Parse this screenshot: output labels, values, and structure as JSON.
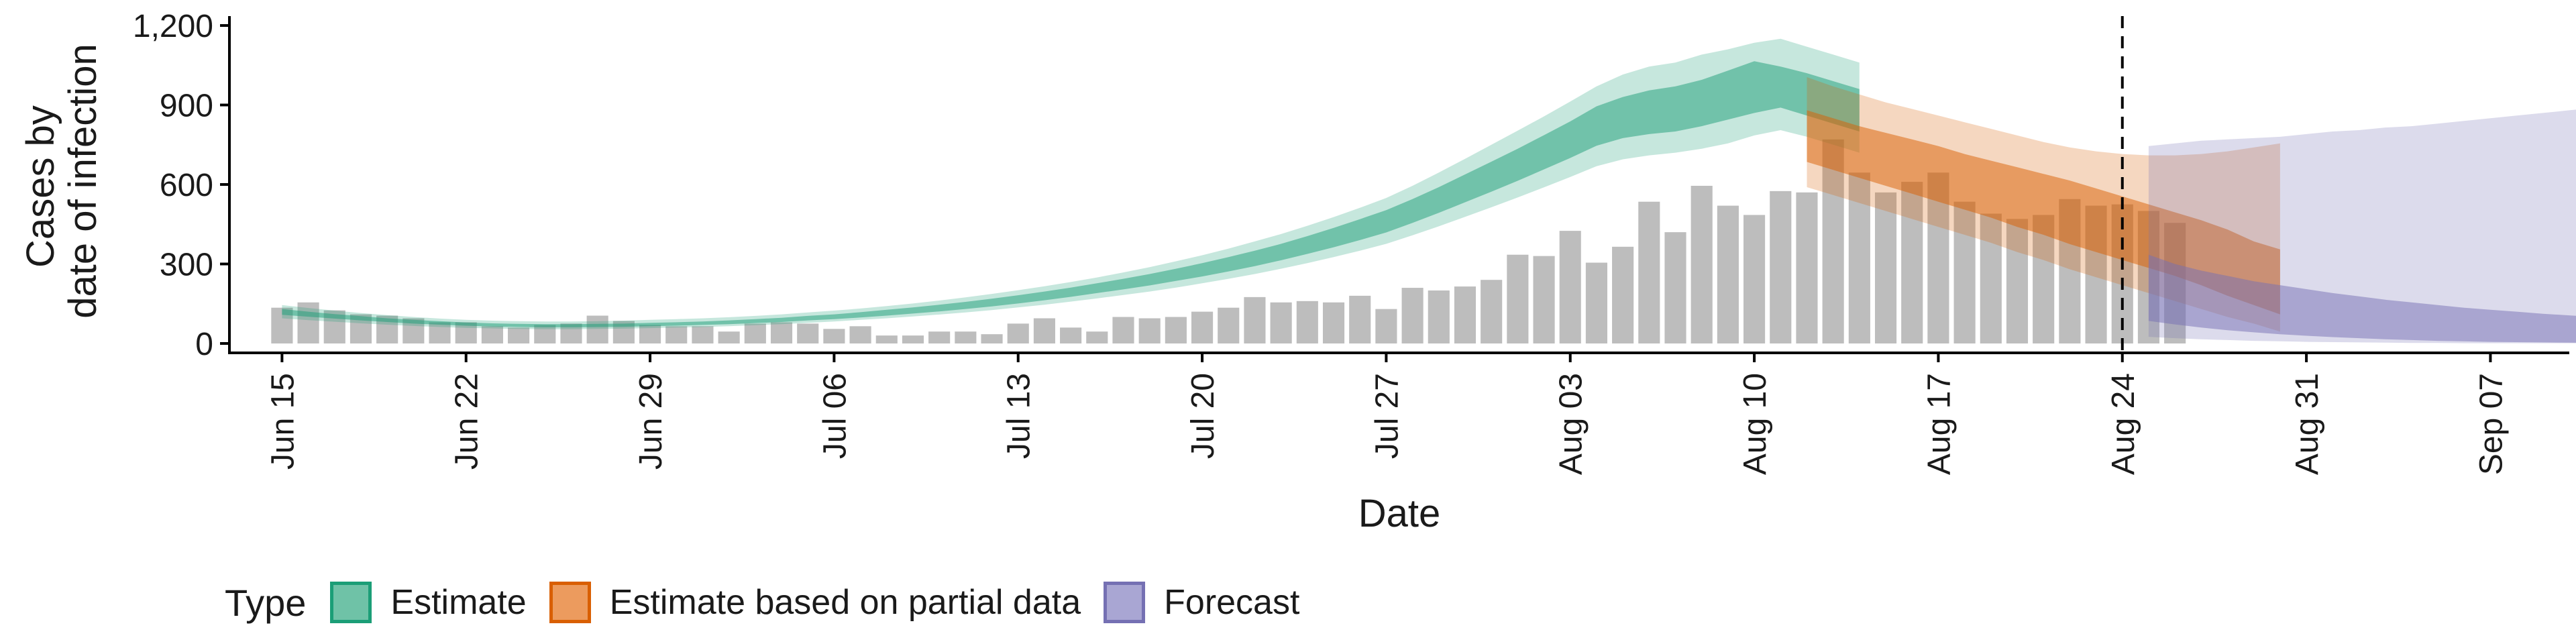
{
  "chart_data": {
    "type": "bar",
    "title": "",
    "xlabel": "Date",
    "ylabel": [
      "Cases by",
      "date of infection"
    ],
    "ylim": [
      0,
      1200
    ],
    "yticks": [
      0,
      300,
      600,
      900,
      1200
    ],
    "ytick_labels": [
      "0",
      "300",
      "600",
      "900",
      "1,200"
    ],
    "xlim": [
      "2020-06-13",
      "2020-09-10"
    ],
    "xticks": [
      "2020-06-15",
      "2020-06-22",
      "2020-06-29",
      "2020-07-06",
      "2020-07-13",
      "2020-07-20",
      "2020-07-27",
      "2020-08-03",
      "2020-08-10",
      "2020-08-17",
      "2020-08-24",
      "2020-08-31",
      "2020-09-07"
    ],
    "xtick_labels": [
      "Jun 15",
      "Jun 22",
      "Jun 29",
      "Jul 06",
      "Jul 13",
      "Jul 20",
      "Jul 27",
      "Aug 03",
      "Aug 10",
      "Aug 17",
      "Aug 24",
      "Aug 31",
      "Sep 07"
    ],
    "grid": false,
    "vline": "2020-08-24",
    "bars": {
      "start": "2020-06-15",
      "color": "#bdbdbd",
      "values": [
        135,
        155,
        125,
        110,
        105,
        95,
        80,
        80,
        65,
        60,
        70,
        75,
        105,
        85,
        70,
        65,
        65,
        45,
        75,
        80,
        75,
        55,
        65,
        30,
        30,
        45,
        45,
        35,
        75,
        95,
        60,
        45,
        100,
        95,
        100,
        120,
        135,
        175,
        155,
        160,
        155,
        180,
        130,
        210,
        200,
        215,
        240,
        335,
        330,
        425,
        305,
        365,
        535,
        420,
        595,
        520,
        485,
        575,
        570,
        770,
        645,
        570,
        610,
        645,
        535,
        490,
        470,
        485,
        545,
        520,
        525,
        500,
        455
      ]
    },
    "series": [
      {
        "name": "Estimate",
        "color": "#1b9e77",
        "start": "2020-06-15",
        "median": [
          118,
          110,
          102,
          95,
          88,
          82,
          77,
          73,
          70,
          68,
          67,
          67,
          68,
          69,
          71,
          73,
          76,
          80,
          84,
          89,
          95,
          101,
          108,
          116,
          124,
          133,
          143,
          154,
          166,
          179,
          193,
          208,
          224,
          241,
          259,
          278,
          299,
          321,
          345,
          371,
          399,
          429,
          461,
          500,
          542,
          586,
          630,
          675,
          722,
          770,
          820,
          852,
          870,
          882,
          905,
          935,
          965,
          990,
          975,
          945,
          920
        ],
        "inner": [
          [
            108,
            130
          ],
          [
            101,
            120
          ],
          [
            94,
            111
          ],
          [
            87,
            103
          ],
          [
            81,
            95
          ],
          [
            75,
            89
          ],
          [
            71,
            84
          ],
          [
            67,
            79
          ],
          [
            64,
            76
          ],
          [
            62,
            74
          ],
          [
            61,
            73
          ],
          [
            61,
            73
          ],
          [
            62,
            74
          ],
          [
            63,
            75
          ],
          [
            65,
            78
          ],
          [
            67,
            80
          ],
          [
            70,
            83
          ],
          [
            73,
            87
          ],
          [
            77,
            92
          ],
          [
            81,
            97
          ],
          [
            87,
            104
          ],
          [
            92,
            110
          ],
          [
            98,
            118
          ],
          [
            105,
            127
          ],
          [
            113,
            136
          ],
          [
            121,
            146
          ],
          [
            130,
            157
          ],
          [
            140,
            169
          ],
          [
            151,
            182
          ],
          [
            163,
            196
          ],
          [
            176,
            211
          ],
          [
            190,
            227
          ],
          [
            204,
            244
          ],
          [
            219,
            262
          ],
          [
            236,
            282
          ],
          [
            253,
            303
          ],
          [
            272,
            326
          ],
          [
            292,
            350
          ],
          [
            314,
            376
          ],
          [
            338,
            405
          ],
          [
            363,
            436
          ],
          [
            390,
            469
          ],
          [
            419,
            503
          ],
          [
            455,
            545
          ],
          [
            493,
            590
          ],
          [
            533,
            638
          ],
          [
            573,
            686
          ],
          [
            614,
            735
          ],
          [
            657,
            786
          ],
          [
            700,
            838
          ],
          [
            746,
            895
          ],
          [
            775,
            930
          ],
          [
            790,
            955
          ],
          [
            800,
            970
          ],
          [
            820,
            995
          ],
          [
            845,
            1030
          ],
          [
            870,
            1065
          ],
          [
            890,
            1045
          ],
          [
            860,
            1020
          ],
          [
            830,
            990
          ],
          [
            800,
            960
          ]
        ],
        "outer": [
          [
            95,
            145
          ],
          [
            88,
            134
          ],
          [
            82,
            124
          ],
          [
            76,
            115
          ],
          [
            71,
            107
          ],
          [
            66,
            100
          ],
          [
            62,
            94
          ],
          [
            59,
            89
          ],
          [
            57,
            86
          ],
          [
            55,
            84
          ],
          [
            54,
            83
          ],
          [
            54,
            83
          ],
          [
            55,
            84
          ],
          [
            56,
            86
          ],
          [
            58,
            89
          ],
          [
            60,
            92
          ],
          [
            62,
            95
          ],
          [
            65,
            99
          ],
          [
            69,
            104
          ],
          [
            73,
            110
          ],
          [
            78,
            117
          ],
          [
            83,
            124
          ],
          [
            89,
            132
          ],
          [
            95,
            141
          ],
          [
            102,
            151
          ],
          [
            109,
            162
          ],
          [
            117,
            174
          ],
          [
            126,
            187
          ],
          [
            136,
            201
          ],
          [
            146,
            216
          ],
          [
            158,
            232
          ],
          [
            170,
            249
          ],
          [
            183,
            268
          ],
          [
            196,
            288
          ],
          [
            211,
            310
          ],
          [
            227,
            333
          ],
          [
            244,
            358
          ],
          [
            262,
            385
          ],
          [
            282,
            413
          ],
          [
            303,
            444
          ],
          [
            326,
            477
          ],
          [
            350,
            512
          ],
          [
            376,
            549
          ],
          [
            408,
            595
          ],
          [
            442,
            645
          ],
          [
            478,
            697
          ],
          [
            514,
            750
          ],
          [
            551,
            803
          ],
          [
            589,
            857
          ],
          [
            628,
            913
          ],
          [
            669,
            970
          ],
          [
            695,
            1015
          ],
          [
            710,
            1045
          ],
          [
            720,
            1060
          ],
          [
            735,
            1090
          ],
          [
            755,
            1110
          ],
          [
            785,
            1135
          ],
          [
            805,
            1150
          ],
          [
            780,
            1120
          ],
          [
            750,
            1090
          ],
          [
            720,
            1060
          ]
        ]
      },
      {
        "name": "Estimate based on partial data",
        "color": "#d95f02",
        "start": "2020-08-12",
        "median": [
          780,
          750,
          720,
          690,
          665,
          640,
          610,
          580,
          555,
          525,
          500,
          470,
          440,
          410,
          385,
          350,
          310,
          270,
          235
        ],
        "inner": [
          [
            685,
            880
          ],
          [
            655,
            850
          ],
          [
            625,
            820
          ],
          [
            595,
            795
          ],
          [
            565,
            770
          ],
          [
            535,
            745
          ],
          [
            505,
            715
          ],
          [
            475,
            690
          ],
          [
            440,
            665
          ],
          [
            410,
            640
          ],
          [
            375,
            615
          ],
          [
            345,
            585
          ],
          [
            315,
            555
          ],
          [
            285,
            525
          ],
          [
            255,
            495
          ],
          [
            220,
            465
          ],
          [
            180,
            430
          ],
          [
            145,
            385
          ],
          [
            110,
            355
          ]
        ],
        "outer": [
          [
            590,
            1005
          ],
          [
            560,
            970
          ],
          [
            530,
            940
          ],
          [
            500,
            910
          ],
          [
            470,
            885
          ],
          [
            440,
            860
          ],
          [
            410,
            835
          ],
          [
            380,
            810
          ],
          [
            345,
            785
          ],
          [
            315,
            760
          ],
          [
            280,
            740
          ],
          [
            250,
            725
          ],
          [
            220,
            715
          ],
          [
            190,
            710
          ],
          [
            160,
            710
          ],
          [
            130,
            715
          ],
          [
            100,
            725
          ],
          [
            75,
            740
          ],
          [
            45,
            755
          ]
        ]
      },
      {
        "name": "Forecast",
        "color": "#7570b3",
        "start": "2020-08-25",
        "median": [
          200,
          180,
          165,
          150,
          140,
          130,
          120,
          112,
          104,
          96,
          88,
          80,
          73,
          67,
          61,
          55,
          50,
          45,
          41,
          37
        ],
        "inner": [
          [
            85,
            335
          ],
          [
            72,
            300
          ],
          [
            60,
            275
          ],
          [
            50,
            255
          ],
          [
            42,
            235
          ],
          [
            35,
            220
          ],
          [
            29,
            205
          ],
          [
            24,
            190
          ],
          [
            20,
            178
          ],
          [
            16,
            165
          ],
          [
            13,
            155
          ],
          [
            10,
            145
          ],
          [
            8,
            135
          ],
          [
            6,
            127
          ],
          [
            5,
            120
          ],
          [
            4,
            112
          ],
          [
            3,
            106
          ],
          [
            2,
            100
          ],
          [
            1,
            95
          ],
          [
            1,
            90
          ]
        ],
        "outer": [
          [
            25,
            745
          ],
          [
            20,
            755
          ],
          [
            16,
            765
          ],
          [
            13,
            770
          ],
          [
            10,
            775
          ],
          [
            8,
            780
          ],
          [
            6,
            790
          ],
          [
            5,
            800
          ],
          [
            4,
            805
          ],
          [
            3,
            815
          ],
          [
            2,
            820
          ],
          [
            2,
            830
          ],
          [
            1,
            840
          ],
          [
            1,
            850
          ],
          [
            1,
            860
          ],
          [
            1,
            870
          ],
          [
            1,
            880
          ],
          [
            1,
            890
          ],
          [
            1,
            900
          ],
          [
            1,
            915
          ]
        ]
      }
    ],
    "legend": {
      "position": "bottom-left",
      "title": "Type",
      "items": [
        {
          "label": "Estimate",
          "fill": "#6fc2a7",
          "border": "#1b9e77"
        },
        {
          "label": "Estimate based on partial data",
          "fill": "#ec9b5e",
          "border": "#d95f02"
        },
        {
          "label": "Forecast",
          "fill": "#a9a6d3",
          "border": "#7570b3"
        }
      ]
    }
  }
}
